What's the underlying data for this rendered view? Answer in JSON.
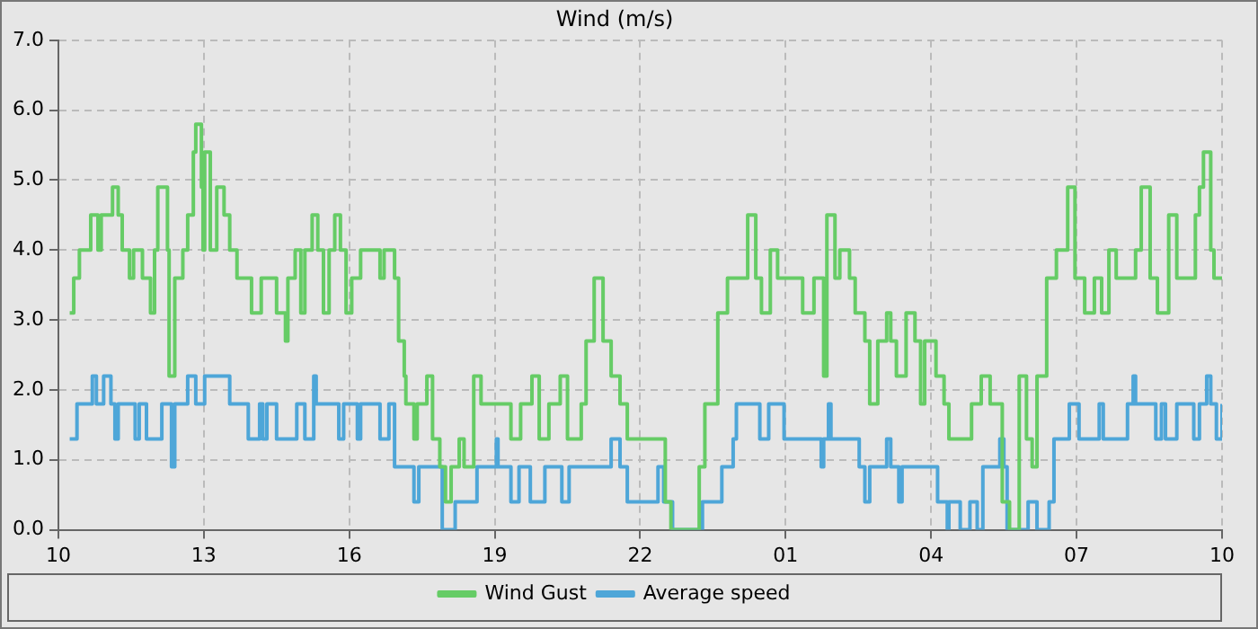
{
  "chart_data": {
    "type": "step",
    "title": "Wind (m/s)",
    "xlim": [
      "--01-01T10:00",
      "--01-02T10:00"
    ],
    "ylim": [
      0,
      7
    ],
    "xticks": [
      {
        "value": "--01-01T10:00",
        "label": "10"
      },
      {
        "value": "--01-01T13:00",
        "label": "13"
      },
      {
        "value": "--01-01T16:00",
        "label": "16"
      },
      {
        "value": "--01-01T19:00",
        "label": "19"
      },
      {
        "value": "--01-01T22:00",
        "label": "22"
      },
      {
        "value": "--01-02T01:00",
        "label": "01"
      },
      {
        "value": "--01-02T04:00",
        "label": "04"
      },
      {
        "value": "--01-02T07:00",
        "label": "07"
      },
      {
        "value": "--01-02T10:00",
        "label": "10"
      }
    ],
    "yticks": [
      {
        "value": 0,
        "label": "0.0"
      },
      {
        "value": 1,
        "label": "1.0"
      },
      {
        "value": 2,
        "label": "2.0"
      },
      {
        "value": 3,
        "label": "3.0"
      },
      {
        "value": 4,
        "label": "4.0"
      },
      {
        "value": 5,
        "label": "5.0"
      },
      {
        "value": 6,
        "label": "6.0"
      },
      {
        "value": 7,
        "label": "7.0"
      }
    ],
    "grid": true,
    "legend": "bottom",
    "line_style": "solid",
    "marker": "none",
    "series": [
      {
        "name": "Wind Gust",
        "color": "#66cc66",
        "x": [
          "--01-01T10:14",
          "--01-01T10:19",
          "--01-01T10:26",
          "--01-01T10:40",
          "--01-01T10:49",
          "--01-01T10:53",
          "--01-01T11:07",
          "--01-01T11:14",
          "--01-01T11:19",
          "--01-01T11:28",
          "--01-01T11:33",
          "--01-01T11:44",
          "--01-01T11:54",
          "--01-01T11:59",
          "--01-01T12:03",
          "--01-01T12:15",
          "--01-01T12:17",
          "--01-01T12:24",
          "--01-01T12:34",
          "--01-01T12:40",
          "--01-01T12:47",
          "--01-01T12:50",
          "--01-01T12:57",
          "--01-01T12:59",
          "--01-01T13:01",
          "--01-01T13:08",
          "--01-01T13:16",
          "--01-01T13:25",
          "--01-01T13:32",
          "--01-01T13:41",
          "--01-01T13:59",
          "--01-01T14:11",
          "--01-01T14:30",
          "--01-01T14:41",
          "--01-01T14:44",
          "--01-01T14:53",
          "--01-01T15:00",
          "--01-01T15:05",
          "--01-01T15:14",
          "--01-01T15:21",
          "--01-01T15:28",
          "--01-01T15:35",
          "--01-01T15:42",
          "--01-01T15:49",
          "--01-01T15:56",
          "--01-01T16:03",
          "--01-01T16:14",
          "--01-01T16:38",
          "--01-01T16:43",
          "--01-01T16:56",
          "--01-01T17:01",
          "--01-01T17:08",
          "--01-01T17:10",
          "--01-01T17:20",
          "--01-01T17:24",
          "--01-01T17:36",
          "--01-01T17:43",
          "--01-01T17:52",
          "--01-01T17:59",
          "--01-01T18:06",
          "--01-01T18:16",
          "--01-01T18:22",
          "--01-01T18:34",
          "--01-01T18:43",
          "--01-01T19:20",
          "--01-01T19:32",
          "--01-01T19:46",
          "--01-01T19:55",
          "--01-01T20:07",
          "--01-01T20:21",
          "--01-01T20:30",
          "--01-01T20:47",
          "--01-01T20:53",
          "--01-01T21:03",
          "--01-01T21:14",
          "--01-01T21:24",
          "--01-01T21:35",
          "--01-01T21:44",
          "--01-01T22:31",
          "--01-01T22:38",
          "--01-01T23:13",
          "--01-01T23:20",
          "--01-01T23:36",
          "--01-01T23:48",
          "--01-02T00:13",
          "--01-02T00:23",
          "--01-02T00:30",
          "--01-02T00:41",
          "--01-02T00:50",
          "--01-02T01:21",
          "--01-02T01:35",
          "--01-02T01:47",
          "--01-02T01:51",
          "--01-02T02:01",
          "--01-02T02:07",
          "--01-02T02:19",
          "--01-02T02:26",
          "--01-02T02:38",
          "--01-02T02:44",
          "--01-02T02:54",
          "--01-02T03:05",
          "--01-02T03:10",
          "--01-02T03:17",
          "--01-02T03:29",
          "--01-02T03:40",
          "--01-02T03:47",
          "--01-02T03:52",
          "--01-02T04:06",
          "--01-02T04:16",
          "--01-02T04:22",
          "--01-02T04:50",
          "--01-02T05:02",
          "--01-02T05:13",
          "--01-02T05:28",
          "--01-02T05:37",
          "--01-02T05:49",
          "--01-02T05:58",
          "--01-02T06:05",
          "--01-02T06:11",
          "--01-02T06:23",
          "--01-02T06:35",
          "--01-02T06:49",
          "--01-02T06:58",
          "--01-02T07:10",
          "--01-02T07:22",
          "--01-02T07:31",
          "--01-02T07:40",
          "--01-02T07:49",
          "--01-02T08:13",
          "--01-02T08:20",
          "--01-02T08:31",
          "--01-02T08:40",
          "--01-02T08:54",
          "--01-02T09:04",
          "--01-02T09:27",
          "--01-02T09:32",
          "--01-02T09:37",
          "--01-02T09:46",
          "--01-02T09:50",
          "--01-02T10:00"
        ],
        "values": [
          3.1,
          3.6,
          4.0,
          4.5,
          4.0,
          4.5,
          4.9,
          4.5,
          4.0,
          3.6,
          4.0,
          3.6,
          3.1,
          4.0,
          4.9,
          4.0,
          2.2,
          3.6,
          4.0,
          4.5,
          5.4,
          5.8,
          4.9,
          4.0,
          5.4,
          4.0,
          4.9,
          4.5,
          4.0,
          3.6,
          3.1,
          3.6,
          3.1,
          2.7,
          3.6,
          4.0,
          3.1,
          4.0,
          4.5,
          4.0,
          3.1,
          4.0,
          4.5,
          4.0,
          3.1,
          3.6,
          4.0,
          3.6,
          4.0,
          3.6,
          2.7,
          2.2,
          1.8,
          1.3,
          1.8,
          2.2,
          1.3,
          0.9,
          0.4,
          0.9,
          1.3,
          0.9,
          2.2,
          1.8,
          1.3,
          1.8,
          2.2,
          1.3,
          1.8,
          2.2,
          1.3,
          1.8,
          2.7,
          3.6,
          2.7,
          2.2,
          1.8,
          1.3,
          0.4,
          0,
          0.9,
          1.8,
          3.1,
          3.6,
          4.5,
          3.6,
          3.1,
          4.0,
          3.6,
          3.1,
          3.6,
          2.2,
          4.5,
          3.6,
          4.0,
          3.6,
          3.1,
          2.7,
          1.8,
          2.7,
          3.1,
          2.7,
          2.2,
          3.1,
          2.7,
          1.8,
          2.7,
          2.2,
          1.8,
          1.3,
          1.8,
          2.2,
          1.8,
          0.4,
          0,
          2.2,
          1.3,
          0.9,
          2.2,
          3.6,
          4.0,
          4.9,
          3.6,
          3.1,
          3.6,
          3.1,
          4.0,
          3.6,
          4.0,
          4.9,
          3.6,
          3.1,
          4.5,
          3.6,
          4.5,
          4.9,
          5.4,
          4.0,
          3.6,
          3.6
        ]
      },
      {
        "name": "Average speed",
        "color": "#4ea6d8",
        "x": [
          "--01-01T10:14",
          "--01-01T10:23",
          "--01-01T10:42",
          "--01-01T10:47",
          "--01-01T10:56",
          "--01-01T11:05",
          "--01-01T11:10",
          "--01-01T11:14",
          "--01-01T11:35",
          "--01-01T11:40",
          "--01-01T11:49",
          "--01-01T12:08",
          "--01-01T12:20",
          "--01-01T12:24",
          "--01-01T12:40",
          "--01-01T12:50",
          "--01-01T13:01",
          "--01-01T13:32",
          "--01-01T13:55",
          "--01-01T14:09",
          "--01-01T14:13",
          "--01-01T14:18",
          "--01-01T14:30",
          "--01-01T14:55",
          "--01-01T15:05",
          "--01-01T15:16",
          "--01-01T15:19",
          "--01-01T15:47",
          "--01-01T15:53",
          "--01-01T16:10",
          "--01-01T16:14",
          "--01-01T16:38",
          "--01-01T16:49",
          "--01-01T16:56",
          "--01-01T17:20",
          "--01-01T17:26",
          "--01-01T17:55",
          "--01-01T18:11",
          "--01-01T18:38",
          "--01-01T19:02",
          "--01-01T19:04",
          "--01-01T19:20",
          "--01-01T19:30",
          "--01-01T19:44",
          "--01-01T20:02",
          "--01-01T20:23",
          "--01-01T20:32",
          "--01-01T21:24",
          "--01-01T21:35",
          "--01-01T21:44",
          "--01-01T22:22",
          "--01-01T22:29",
          "--01-01T22:40",
          "--01-01T23:17",
          "--01-01T23:41",
          "--01-01T23:55",
          "--01-01T23:59",
          "--01-02T00:28",
          "--01-02T00:39",
          "--01-02T00:58",
          "--01-02T01:44",
          "--01-02T01:47",
          "--01-02T01:53",
          "--01-02T01:56",
          "--01-02T02:31",
          "--01-02T02:38",
          "--01-02T02:44",
          "--01-02T03:05",
          "--01-02T03:10",
          "--01-02T03:20",
          "--01-02T03:24",
          "--01-02T04:08",
          "--01-02T04:20",
          "--01-02T04:22",
          "--01-02T04:36",
          "--01-02T04:48",
          "--01-02T04:57",
          "--01-02T05:04",
          "--01-02T05:25",
          "--01-02T05:30",
          "--01-02T05:34",
          "--01-02T06:00",
          "--01-02T06:11",
          "--01-02T06:26",
          "--01-02T06:32",
          "--01-02T06:51",
          "--01-02T07:03",
          "--01-02T07:28",
          "--01-02T07:33",
          "--01-02T08:03",
          "--01-02T08:10",
          "--01-02T08:13",
          "--01-02T08:38",
          "--01-02T08:45",
          "--01-02T08:50",
          "--01-02T09:04",
          "--01-02T09:25",
          "--01-02T09:32",
          "--01-02T09:41",
          "--01-02T09:46",
          "--01-02T09:53",
          "--01-02T10:00"
        ],
        "values": [
          1.3,
          1.8,
          2.2,
          1.8,
          2.2,
          1.8,
          1.3,
          1.8,
          1.3,
          1.8,
          1.3,
          1.8,
          0.9,
          1.8,
          2.2,
          1.8,
          2.2,
          1.8,
          1.3,
          1.8,
          1.3,
          1.8,
          1.3,
          1.8,
          1.3,
          2.2,
          1.8,
          1.3,
          1.8,
          1.3,
          1.8,
          1.3,
          1.8,
          0.9,
          0.4,
          0.9,
          0,
          0.4,
          0.9,
          1.3,
          0.9,
          0.4,
          0.9,
          0.4,
          0.9,
          0.4,
          0.9,
          1.3,
          0.9,
          0.4,
          0.9,
          0.4,
          0,
          0.4,
          0.9,
          1.3,
          1.8,
          1.3,
          1.8,
          1.3,
          0.9,
          1.3,
          1.8,
          1.3,
          0.9,
          0.4,
          0.9,
          1.3,
          0.9,
          0.4,
          0.9,
          0.4,
          0,
          0.4,
          0,
          0.4,
          0,
          0.9,
          1.3,
          0.9,
          0,
          0.4,
          0,
          0.4,
          1.3,
          1.8,
          1.3,
          1.8,
          1.3,
          1.8,
          2.2,
          1.8,
          1.3,
          1.8,
          1.3,
          1.8,
          1.3,
          1.8,
          2.2,
          1.8,
          1.3,
          1.8
        ]
      }
    ]
  }
}
